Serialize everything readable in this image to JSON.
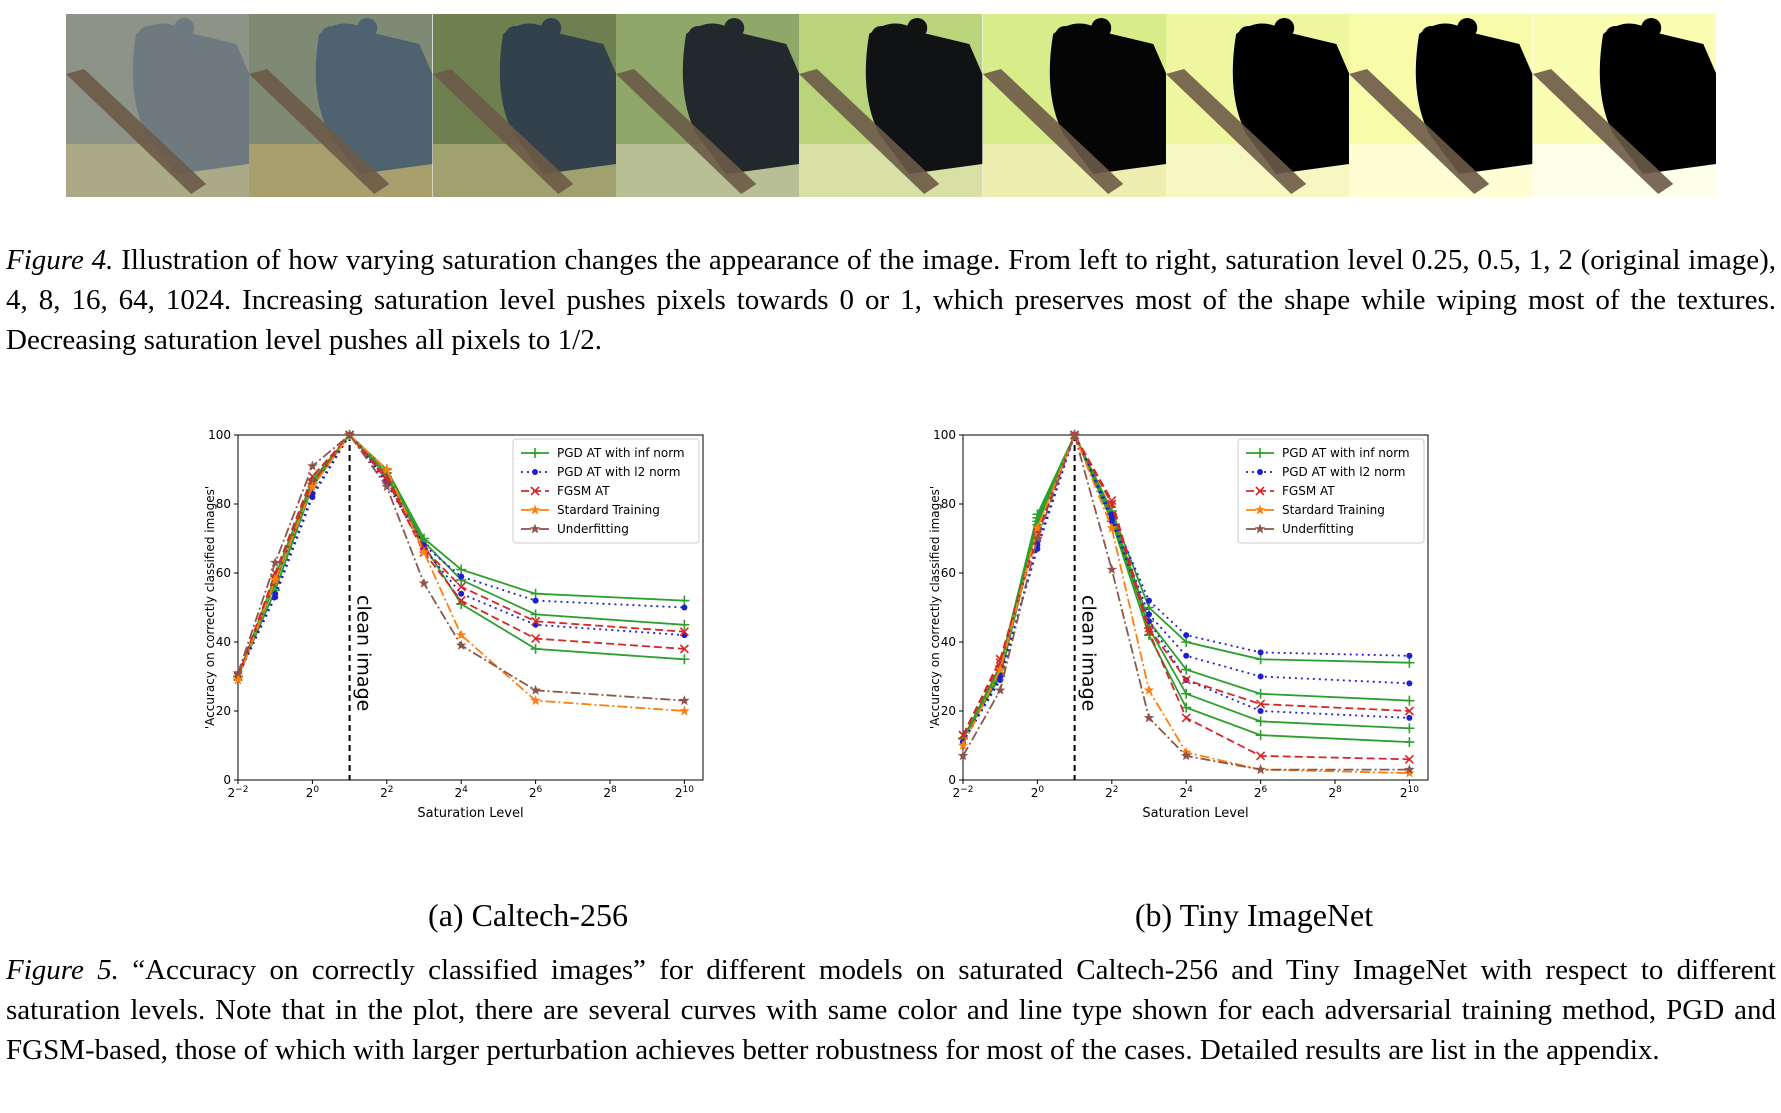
{
  "figure4": {
    "lead": "Figure 4.",
    "text": " Illustration of how varying saturation changes the appearance of the image. From left to right, saturation level 0.25, 0.5, 1, 2 (original image), 4, 8, 16, 64, 1024. Increasing saturation level pushes pixels towards 0 or 1, which preserves most of the shape while wiping most of the textures. Decreasing saturation level pushes all pixels to 1/2.",
    "tiles": [
      {
        "bg": "#8d9487",
        "fg": "#6f7a80",
        "accent": "#b7b48a"
      },
      {
        "bg": "#7f8a74",
        "fg": "#4f6270",
        "accent": "#b9a86e"
      },
      {
        "bg": "#6e7f50",
        "fg": "#33414c",
        "accent": "#b4b07a"
      },
      {
        "bg": "#8fa86a",
        "fg": "#22282c",
        "accent": "#c9c9a8"
      },
      {
        "bg": "#b9d47a",
        "fg": "#111214",
        "accent": "#e6e6b8"
      },
      {
        "bg": "#d9ec8a",
        "fg": "#050505",
        "accent": "#f6f0c2"
      },
      {
        "bg": "#eef7a0",
        "fg": "#000000",
        "accent": "#fbf7d0"
      },
      {
        "bg": "#f8fca8",
        "fg": "#000000",
        "accent": "#ffffe6"
      },
      {
        "bg": "#fbfdb2",
        "fg": "#000000",
        "accent": "#ffffff"
      }
    ]
  },
  "figure5": {
    "lead": "Figure 5.",
    "text": " “Accuracy on correctly classified images” for different models on saturated Caltech-256 and Tiny ImageNet with respect to different saturation levels. Note that in the plot, there are several curves with same color and line type shown for each adversarial training method, PGD and FGSM-based, those of which with larger perturbation achieves better robustness for most of the cases. Detailed results are list in the appendix."
  },
  "subcaptions": [
    "(a) Caltech-256",
    "(b) Tiny ImageNet"
  ],
  "chart_data": [
    {
      "type": "line",
      "xlabel": "Saturation Level",
      "ylabel": "'Accuracy on correctly classified images'",
      "annotation": "clean image",
      "annotation_x": 1,
      "x_scale": "log2",
      "xlim": [
        -2,
        10.5
      ],
      "ylim": [
        0,
        100
      ],
      "x": [
        -2,
        -1,
        0,
        1,
        2,
        3,
        4,
        6,
        10
      ],
      "xticks": [
        -2,
        0,
        2,
        4,
        6,
        8,
        10
      ],
      "xtick_base": "2",
      "yticks": [
        0,
        20,
        40,
        60,
        80,
        100
      ],
      "legend_position": "top-right",
      "legend": [
        {
          "label": "PGD AT with inf norm",
          "color": "#2ca02c",
          "dash": "",
          "marker": "plus"
        },
        {
          "label": "PGD AT with l2 norm",
          "color": "#1f1fd0",
          "dash": "2,4",
          "marker": "dot"
        },
        {
          "label": "FGSM AT",
          "color": "#d62728",
          "dash": "8,4",
          "marker": "x"
        },
        {
          "label": "Stardard Training",
          "color": "#ff7f0e",
          "dash": "10,3,2,3",
          "marker": "star"
        },
        {
          "label": "Underfitting",
          "color": "#8c564b",
          "dash": "10,3,2,3",
          "marker": "star"
        }
      ],
      "series": [
        {
          "group": 0,
          "values": [
            30,
            55,
            85,
            100,
            90,
            70,
            61,
            54,
            52
          ]
        },
        {
          "group": 0,
          "values": [
            30,
            57,
            86,
            100,
            89,
            69,
            58,
            48,
            45
          ]
        },
        {
          "group": 0,
          "values": [
            30,
            59,
            87,
            100,
            88,
            68,
            51,
            38,
            35
          ]
        },
        {
          "group": 1,
          "values": [
            30,
            53,
            82,
            100,
            87,
            68,
            59,
            52,
            50
          ]
        },
        {
          "group": 1,
          "values": [
            30,
            54,
            83,
            100,
            86,
            67,
            54,
            45,
            42
          ]
        },
        {
          "group": 2,
          "values": [
            30,
            58,
            86,
            100,
            88,
            67,
            56,
            46,
            43
          ]
        },
        {
          "group": 2,
          "values": [
            30,
            60,
            88,
            100,
            87,
            66,
            52,
            41,
            38
          ]
        },
        {
          "group": 3,
          "values": [
            29,
            58,
            85,
            100,
            90,
            66,
            42,
            23,
            20
          ]
        },
        {
          "group": 4,
          "values": [
            31,
            63,
            91,
            100,
            85,
            57,
            39,
            26,
            23
          ]
        }
      ]
    },
    {
      "type": "line",
      "xlabel": "Saturation Level",
      "ylabel": "'Accuracy on correctly classified images'",
      "annotation": "clean image",
      "annotation_x": 1,
      "x_scale": "log2",
      "xlim": [
        -2,
        10.5
      ],
      "ylim": [
        0,
        100
      ],
      "x": [
        -2,
        -1,
        0,
        1,
        2,
        3,
        4,
        6,
        10
      ],
      "xticks": [
        -2,
        0,
        2,
        4,
        6,
        8,
        10
      ],
      "xtick_base": "2",
      "yticks": [
        0,
        20,
        40,
        60,
        80,
        100
      ],
      "legend_position": "top-right",
      "legend": [
        {
          "label": "PGD AT with inf norm",
          "color": "#2ca02c",
          "dash": "",
          "marker": "plus"
        },
        {
          "label": "PGD AT with l2 norm",
          "color": "#1f1fd0",
          "dash": "2,4",
          "marker": "dot"
        },
        {
          "label": "FGSM AT",
          "color": "#d62728",
          "dash": "8,4",
          "marker": "x"
        },
        {
          "label": "Stardard Training",
          "color": "#ff7f0e",
          "dash": "10,3,2,3",
          "marker": "star"
        },
        {
          "label": "Underfitting",
          "color": "#8c564b",
          "dash": "10,3,2,3",
          "marker": "star"
        }
      ],
      "series": [
        {
          "group": 0,
          "values": [
            12,
            33,
            77,
            100,
            78,
            50,
            40,
            35,
            34
          ]
        },
        {
          "group": 0,
          "values": [
            12,
            32,
            76,
            100,
            77,
            46,
            32,
            25,
            23
          ]
        },
        {
          "group": 0,
          "values": [
            12,
            31,
            75,
            100,
            76,
            44,
            25,
            17,
            15
          ]
        },
        {
          "group": 0,
          "values": [
            12,
            30,
            74,
            100,
            75,
            42,
            21,
            13,
            11
          ]
        },
        {
          "group": 1,
          "values": [
            11,
            30,
            67,
            100,
            77,
            52,
            42,
            37,
            36
          ]
        },
        {
          "group": 1,
          "values": [
            11,
            29,
            68,
            100,
            76,
            48,
            36,
            30,
            28
          ]
        },
        {
          "group": 1,
          "values": [
            11,
            29,
            69,
            100,
            75,
            46,
            29,
            20,
            18
          ]
        },
        {
          "group": 2,
          "values": [
            13,
            35,
            72,
            100,
            81,
            44,
            29,
            22,
            20
          ]
        },
        {
          "group": 2,
          "values": [
            13,
            34,
            71,
            100,
            80,
            43,
            18,
            7,
            6
          ]
        },
        {
          "group": 3,
          "values": [
            10,
            32,
            73,
            100,
            73,
            26,
            8,
            3,
            2
          ]
        },
        {
          "group": 4,
          "values": [
            7,
            26,
            70,
            100,
            61,
            18,
            7,
            3,
            3
          ]
        }
      ]
    }
  ]
}
